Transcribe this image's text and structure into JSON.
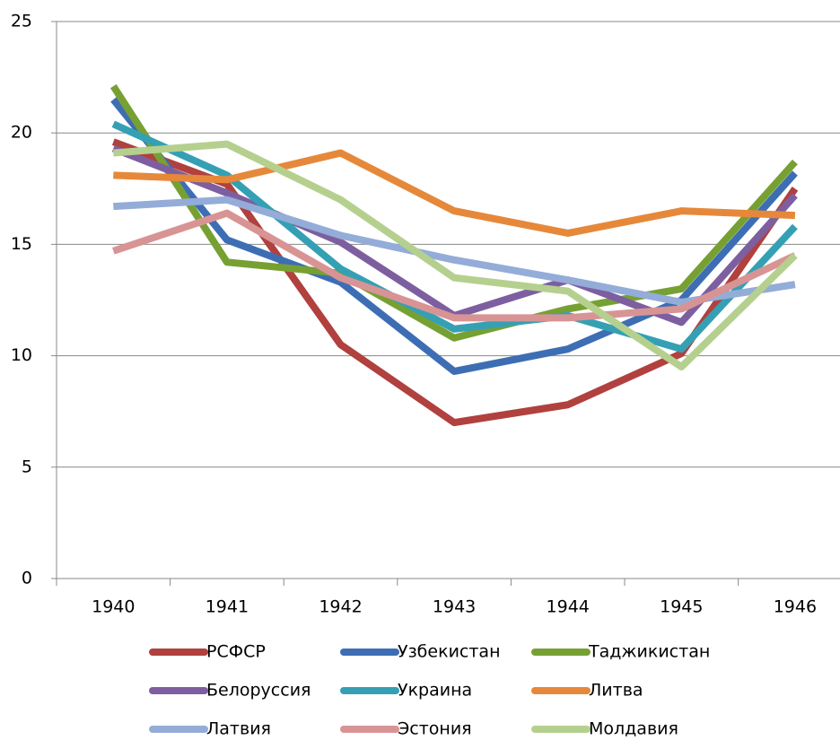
{
  "chart_data": {
    "type": "line",
    "categories": [
      "1940",
      "1941",
      "1942",
      "1943",
      "1944",
      "1945",
      "1946"
    ],
    "ylim": [
      0,
      25
    ],
    "yticks": [
      0,
      5,
      10,
      15,
      20,
      25
    ],
    "grid": true,
    "legend": "bottom",
    "series": [
      {
        "name": "РСФСР",
        "color": "#b0413e",
        "values": [
          19.6,
          17.7,
          10.5,
          7.0,
          7.8,
          10.1,
          17.5
        ]
      },
      {
        "name": "Узбекистан",
        "color": "#3d6eb4",
        "values": [
          21.5,
          15.2,
          13.3,
          9.3,
          10.3,
          12.5,
          18.2
        ]
      },
      {
        "name": "Таджикистан",
        "color": "#77a033",
        "values": [
          22.1,
          14.2,
          13.7,
          10.8,
          12.1,
          13.0,
          18.7
        ]
      },
      {
        "name": "Белоруссия",
        "color": "#7d5fa0",
        "values": [
          19.3,
          17.3,
          15.1,
          11.8,
          13.4,
          11.5,
          17.2
        ]
      },
      {
        "name": "Украина",
        "color": "#35a0b4",
        "values": [
          20.4,
          18.1,
          13.9,
          11.2,
          11.8,
          10.3,
          15.8
        ]
      },
      {
        "name": "Литва",
        "color": "#e6883a",
        "values": [
          18.1,
          17.9,
          19.1,
          16.5,
          15.5,
          16.5,
          16.3
        ]
      },
      {
        "name": "Латвия",
        "color": "#94acd8",
        "values": [
          16.7,
          17.0,
          15.4,
          14.3,
          13.4,
          12.4,
          13.2
        ]
      },
      {
        "name": "Эстония",
        "color": "#d89494",
        "values": [
          14.7,
          16.4,
          13.5,
          11.7,
          11.7,
          12.1,
          14.5
        ]
      },
      {
        "name": "Молдавия",
        "color": "#b5d08e",
        "values": [
          19.1,
          19.5,
          17.0,
          13.5,
          12.9,
          9.5,
          14.5
        ]
      }
    ]
  }
}
